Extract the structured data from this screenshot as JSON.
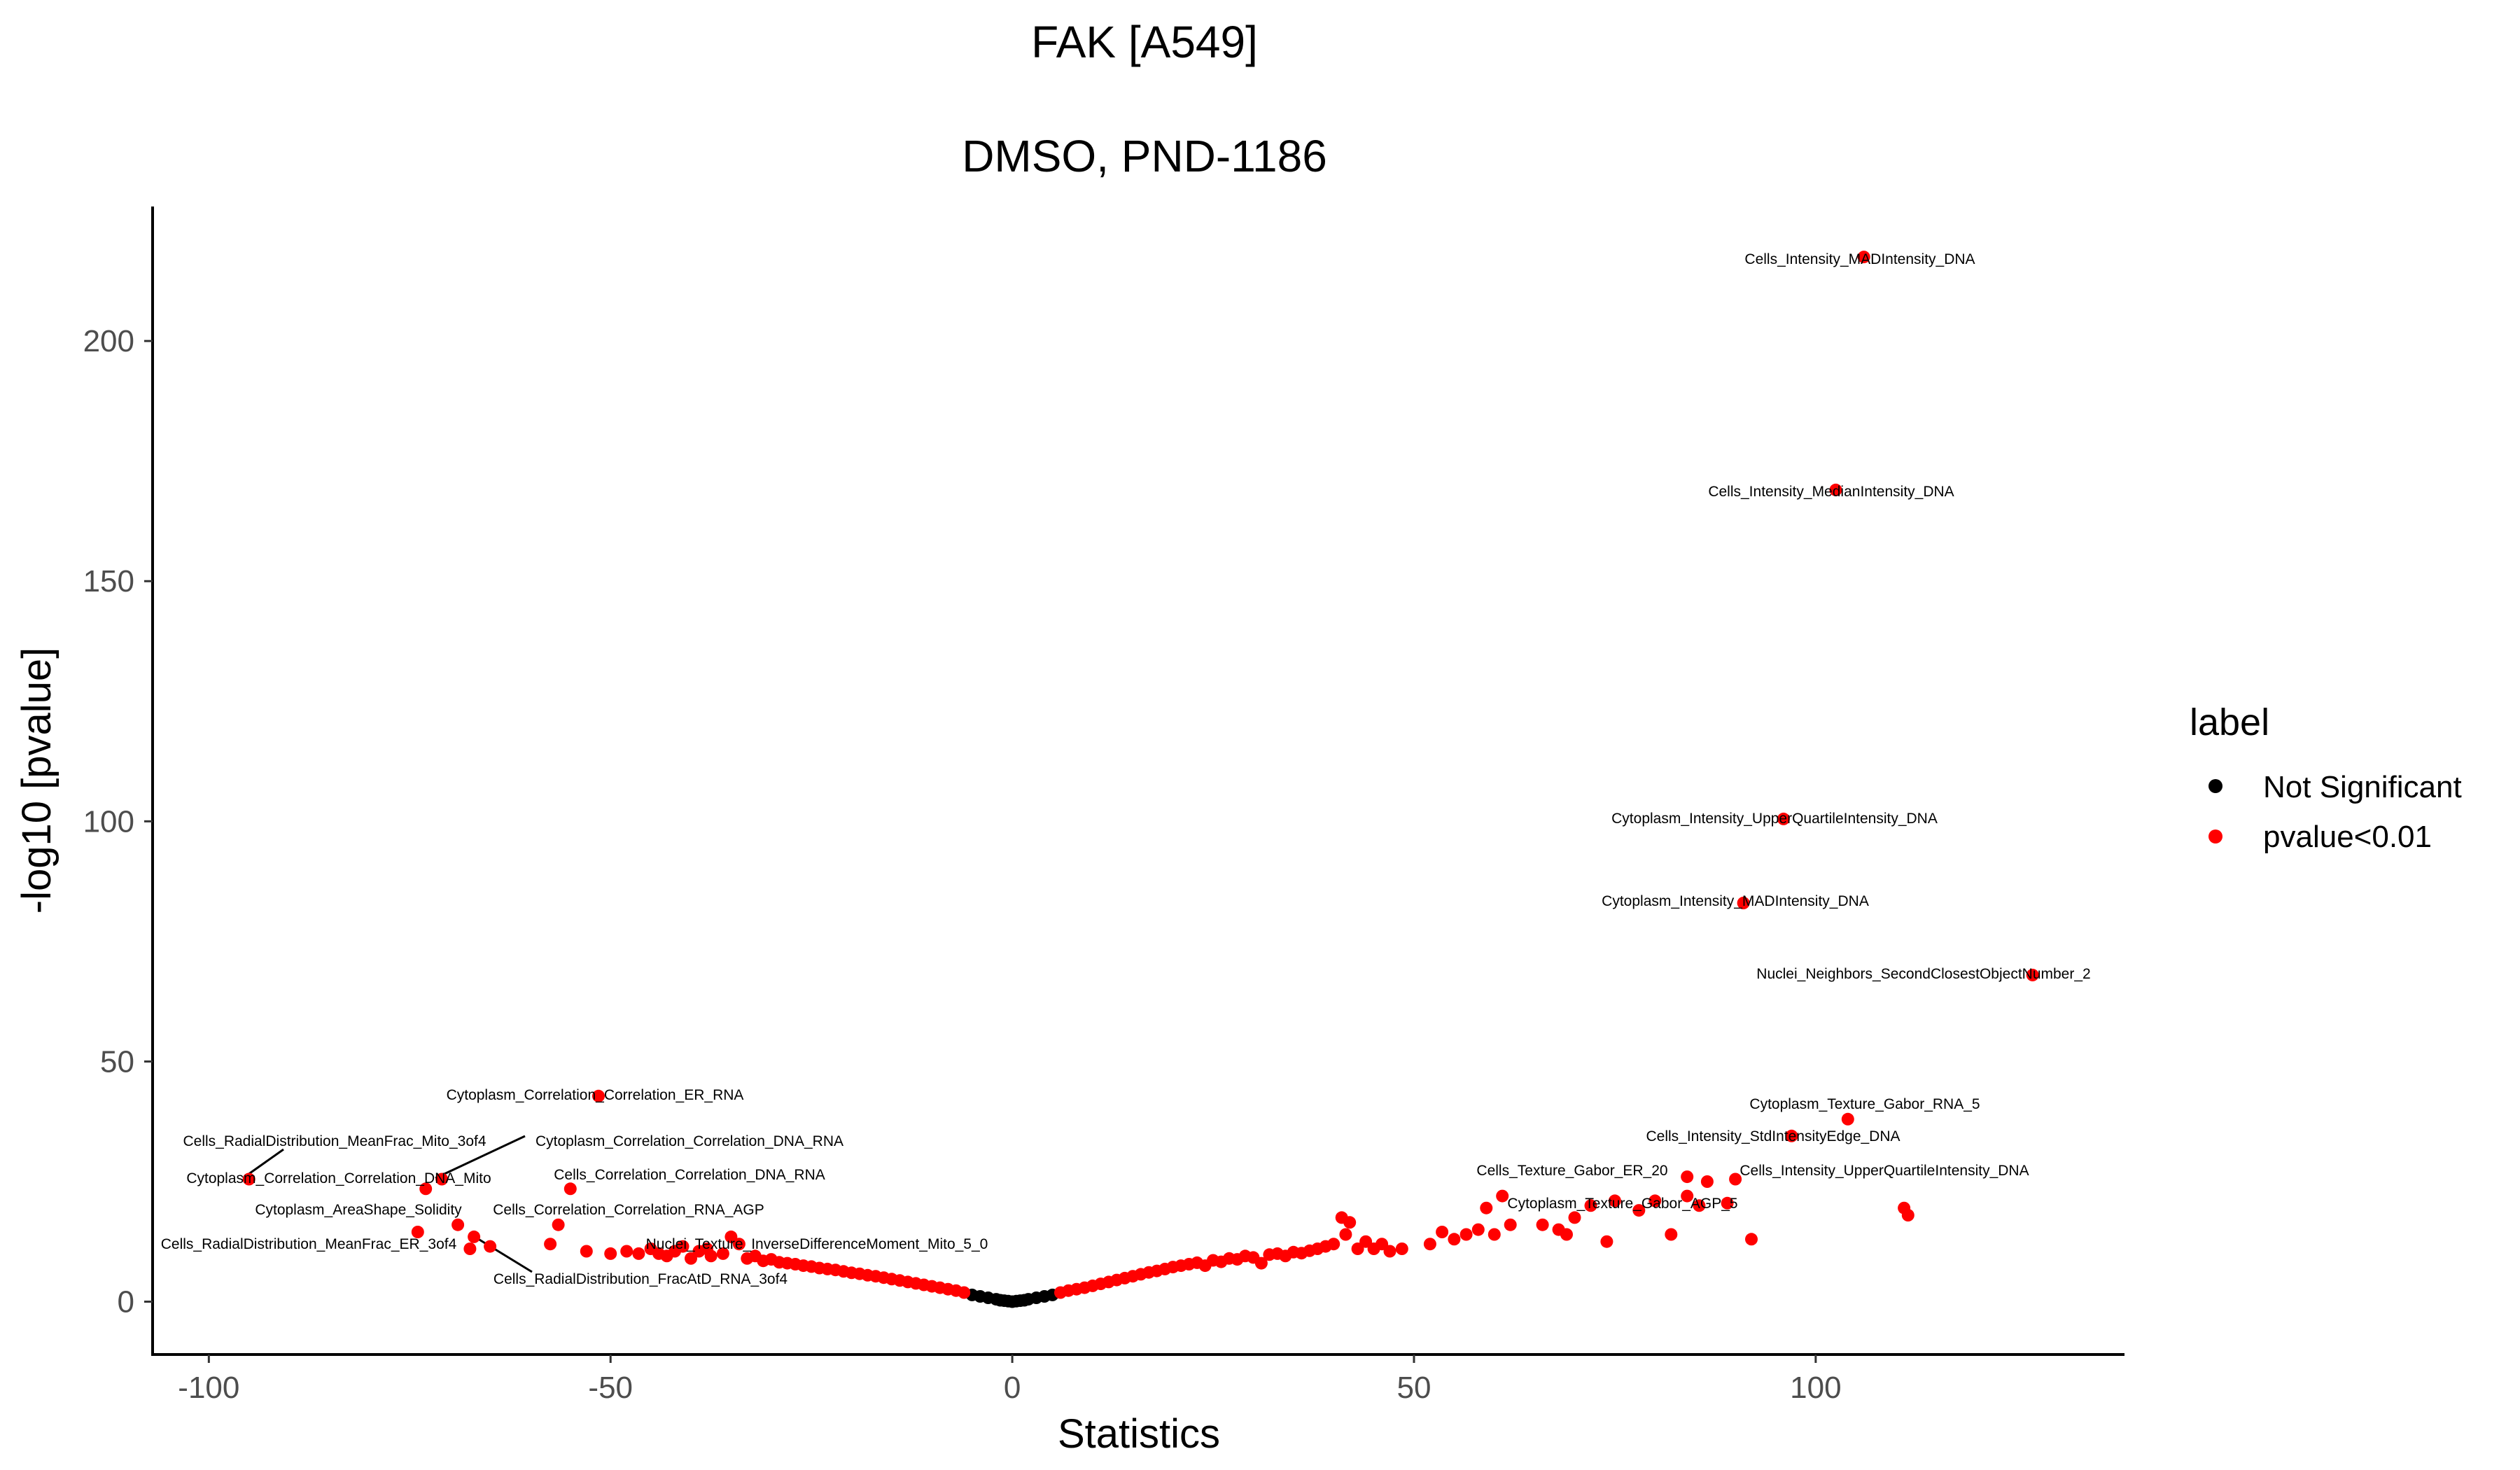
{
  "chart_data": {
    "type": "scatter",
    "title": "FAK [A549]",
    "subtitle": "DMSO, PND-1186",
    "xlabel": "Statistics",
    "ylabel": "-log10 [pvalue]",
    "xlim": [
      -107,
      138
    ],
    "ylim": [
      -11,
      228
    ],
    "x_ticks": [
      -100,
      -50,
      0,
      50,
      100
    ],
    "y_ticks": [
      0,
      50,
      100,
      150,
      200
    ],
    "grid": false,
    "legend": {
      "title": "label",
      "position": "right",
      "entries": [
        {
          "name": "Not Significant",
          "color": "#000000"
        },
        {
          "name": "pvalue<0.01",
          "color": "#ff0000"
        }
      ]
    },
    "series": [
      {
        "name": "Not Significant",
        "color": "#000000",
        "points": [
          [
            -5.0,
            1.4
          ],
          [
            -4.0,
            1.1
          ],
          [
            -3.0,
            0.8
          ],
          [
            -2.0,
            0.5
          ],
          [
            -1.5,
            0.3
          ],
          [
            -1.0,
            0.2
          ],
          [
            -0.5,
            0.1
          ],
          [
            0.0,
            0.0
          ],
          [
            0.5,
            0.1
          ],
          [
            1.0,
            0.2
          ],
          [
            1.5,
            0.3
          ],
          [
            2.0,
            0.5
          ],
          [
            3.0,
            0.8
          ],
          [
            4.0,
            1.1
          ],
          [
            5.0,
            1.4
          ]
        ]
      },
      {
        "name": "pvalue<0.01",
        "color": "#ff0000",
        "points": [
          [
            -95.0,
            25.5
          ],
          [
            -73.0,
            23.5
          ],
          [
            -71.0,
            25.5
          ],
          [
            -74.0,
            14.5
          ],
          [
            -69.0,
            16.0
          ],
          [
            -67.0,
            13.5
          ],
          [
            -67.5,
            11.0
          ],
          [
            -65.0,
            11.5
          ],
          [
            -57.5,
            12.0
          ],
          [
            -56.5,
            16.0
          ],
          [
            -55.0,
            23.5
          ],
          [
            -51.5,
            42.8
          ],
          [
            -53.0,
            10.5
          ],
          [
            -50.0,
            10.0
          ],
          [
            -48.0,
            10.5
          ],
          [
            -46.5,
            10.0
          ],
          [
            -45.0,
            11.0
          ],
          [
            -44.0,
            10.0
          ],
          [
            -43.0,
            9.5
          ],
          [
            -42.0,
            10.5
          ],
          [
            -41.0,
            11.5
          ],
          [
            -40.0,
            9.0
          ],
          [
            -39.0,
            10.5
          ],
          [
            -38.0,
            11.0
          ],
          [
            -37.5,
            9.5
          ],
          [
            -36.0,
            10.0
          ],
          [
            -35.0,
            13.5
          ],
          [
            -34.0,
            12.0
          ],
          [
            -33.0,
            9.0
          ],
          [
            -32.0,
            9.5
          ],
          [
            -31.0,
            8.5
          ],
          [
            -30.0,
            8.8
          ],
          [
            -29.0,
            8.2
          ],
          [
            -28.0,
            8.0
          ],
          [
            -27.0,
            7.8
          ],
          [
            -26.0,
            7.5
          ],
          [
            -25.0,
            7.3
          ],
          [
            -24.0,
            7.0
          ],
          [
            -23.0,
            6.8
          ],
          [
            -22.0,
            6.6
          ],
          [
            -21.0,
            6.3
          ],
          [
            -20.0,
            6.0
          ],
          [
            -19.0,
            5.8
          ],
          [
            -18.0,
            5.5
          ],
          [
            -17.0,
            5.3
          ],
          [
            -16.0,
            5.0
          ],
          [
            -15.0,
            4.7
          ],
          [
            -14.0,
            4.4
          ],
          [
            -13.0,
            4.1
          ],
          [
            -12.0,
            3.8
          ],
          [
            -11.0,
            3.5
          ],
          [
            -10.0,
            3.2
          ],
          [
            -9.0,
            2.9
          ],
          [
            -8.0,
            2.6
          ],
          [
            -7.0,
            2.3
          ],
          [
            -6.0,
            1.9
          ],
          [
            6.0,
            1.9
          ],
          [
            7.0,
            2.3
          ],
          [
            8.0,
            2.6
          ],
          [
            9.0,
            2.9
          ],
          [
            10.0,
            3.3
          ],
          [
            11.0,
            3.7
          ],
          [
            12.0,
            4.1
          ],
          [
            13.0,
            4.5
          ],
          [
            14.0,
            4.9
          ],
          [
            15.0,
            5.3
          ],
          [
            16.0,
            5.7
          ],
          [
            17.0,
            6.1
          ],
          [
            18.0,
            6.4
          ],
          [
            19.0,
            6.8
          ],
          [
            20.0,
            7.2
          ],
          [
            21.0,
            7.5
          ],
          [
            22.0,
            7.8
          ],
          [
            23.0,
            8.1
          ],
          [
            24.0,
            7.5
          ],
          [
            25.0,
            8.6
          ],
          [
            26.0,
            8.3
          ],
          [
            27.0,
            9.0
          ],
          [
            28.0,
            8.8
          ],
          [
            29.0,
            9.5
          ],
          [
            30.0,
            9.2
          ],
          [
            31.0,
            8.0
          ],
          [
            32.0,
            9.8
          ],
          [
            33.0,
            10.0
          ],
          [
            34.0,
            9.5
          ],
          [
            35.0,
            10.3
          ],
          [
            36.0,
            10.1
          ],
          [
            37.0,
            10.6
          ],
          [
            38.0,
            11.0
          ],
          [
            39.0,
            11.5
          ],
          [
            40.0,
            12.0
          ],
          [
            41.0,
            17.5
          ],
          [
            41.5,
            14.0
          ],
          [
            42.0,
            16.5
          ],
          [
            43.0,
            11.0
          ],
          [
            44.0,
            12.5
          ],
          [
            45.0,
            11.0
          ],
          [
            46.0,
            12.0
          ],
          [
            47.0,
            10.5
          ],
          [
            48.5,
            11.0
          ],
          [
            52.0,
            12.0
          ],
          [
            53.5,
            14.5
          ],
          [
            55.0,
            13.0
          ],
          [
            56.5,
            14.0
          ],
          [
            58.0,
            15.0
          ],
          [
            59.0,
            19.5
          ],
          [
            60.0,
            14.0
          ],
          [
            61.0,
            22.0
          ],
          [
            62.0,
            16.0
          ],
          [
            66.0,
            16.0
          ],
          [
            68.0,
            15.0
          ],
          [
            69.0,
            14.0
          ],
          [
            70.0,
            17.5
          ],
          [
            72.0,
            20.0
          ],
          [
            74.0,
            12.5
          ],
          [
            75.0,
            21.0
          ],
          [
            78.0,
            19.0
          ],
          [
            80.0,
            21.0
          ],
          [
            82.0,
            14.0
          ],
          [
            84.0,
            26.0
          ],
          [
            84.0,
            22.0
          ],
          [
            85.5,
            20.0
          ],
          [
            86.5,
            25.0
          ],
          [
            89.0,
            20.5
          ],
          [
            90.0,
            25.5
          ],
          [
            92.0,
            13.0
          ],
          [
            91.0,
            83.0
          ],
          [
            96.0,
            100.5
          ],
          [
            97.0,
            34.5
          ],
          [
            102.5,
            169.0
          ],
          [
            104.0,
            38.0
          ],
          [
            106.0,
            217.5
          ],
          [
            111.0,
            19.5
          ],
          [
            111.5,
            18.0
          ],
          [
            127.0,
            68.0
          ]
        ]
      }
    ],
    "annotations": [
      {
        "text": "Cells_Intensity_MADIntensity_DNA"
      },
      {
        "text": "Cells_Intensity_MedianIntensity_DNA"
      },
      {
        "text": "Cytoplasm_Intensity_UpperQuartileIntensity_DNA"
      },
      {
        "text": "Cytoplasm_Intensity_MADIntensity_DNA"
      },
      {
        "text": "Nuclei_Neighbors_SecondClosestObjectNumber_2"
      },
      {
        "text": "Cytoplasm_Texture_Gabor_RNA_5"
      },
      {
        "text": "Cells_Intensity_StdIntensityEdge_DNA"
      },
      {
        "text": "Cells_Texture_Gabor_ER_20"
      },
      {
        "text": "Cells_Intensity_UpperQuartileIntensity_DNA"
      },
      {
        "text": "Cytoplasm_Texture_Gabor_AGP_5"
      },
      {
        "text": "Cytoplasm_Correlation_Correlation_ER_RNA"
      },
      {
        "text": "Cells_RadialDistribution_MeanFrac_Mito_3of4"
      },
      {
        "text": "Cytoplasm_Correlation_Correlation_DNA_RNA"
      },
      {
        "text": "Cytoplasm_Correlation_Correlation_DNA_Mito"
      },
      {
        "text": "Cells_Correlation_Correlation_DNA_RNA"
      },
      {
        "text": "Cytoplasm_AreaShape_Solidity"
      },
      {
        "text": "Cells_Correlation_Correlation_RNA_AGP"
      },
      {
        "text": "Cells_RadialDistribution_MeanFrac_ER_3of4"
      },
      {
        "text": "Nuclei_Texture_InverseDifferenceMoment_Mito_5_0"
      },
      {
        "text": "Cells_RadialDistribution_FracAtD_RNA_3of4"
      }
    ]
  }
}
